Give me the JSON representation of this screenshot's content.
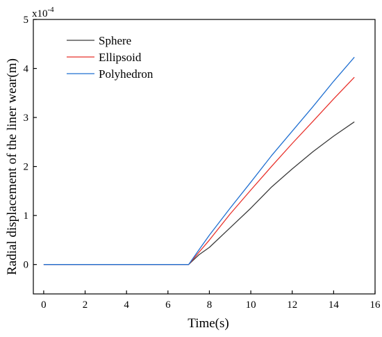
{
  "chart_data": {
    "type": "line",
    "xlabel": "Time(s)",
    "ylabel": "Radial displacement of the liner wear(m)",
    "y_scale_label": "x10",
    "y_scale_exponent": "-4",
    "xlim": [
      -0.5,
      16
    ],
    "ylim": [
      -0.6,
      5
    ],
    "x_ticks": [
      0,
      2,
      4,
      6,
      8,
      10,
      12,
      14,
      16
    ],
    "y_ticks": [
      0,
      1,
      2,
      3,
      4,
      5
    ],
    "legend_position": "top-left",
    "grid": false,
    "series": [
      {
        "name": "Sphere",
        "color": "#3a3a3a",
        "x": [
          0,
          7,
          7.5,
          8,
          9,
          10,
          11,
          12,
          13,
          14,
          15
        ],
        "y": [
          0,
          0,
          0.2,
          0.35,
          0.75,
          1.15,
          1.58,
          1.95,
          2.3,
          2.62,
          2.91
        ]
      },
      {
        "name": "Ellipsoid",
        "color": "#e8302a",
        "x": [
          0,
          7,
          7.5,
          8,
          9,
          10,
          11,
          12,
          13,
          14,
          15
        ],
        "y": [
          0,
          0,
          0.25,
          0.5,
          1.03,
          1.52,
          2.0,
          2.47,
          2.92,
          3.38,
          3.82
        ]
      },
      {
        "name": "Polyhedron",
        "color": "#1f6fd1",
        "x": [
          0,
          7,
          7.5,
          8,
          9,
          10,
          11,
          12,
          13,
          14,
          15
        ],
        "y": [
          0,
          0,
          0.3,
          0.6,
          1.15,
          1.68,
          2.22,
          2.72,
          3.22,
          3.74,
          4.23
        ]
      }
    ]
  }
}
